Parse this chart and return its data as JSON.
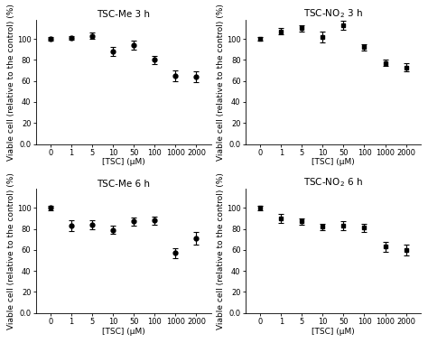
{
  "x_labels": [
    "0",
    "1",
    "5",
    "10",
    "50",
    "100",
    "1000",
    "2000"
  ],
  "x_positions": [
    0,
    1,
    2,
    3,
    4,
    5,
    6,
    7
  ],
  "panels": [
    {
      "title": "TSC-Me 3 h",
      "y_values": [
        100,
        101,
        103,
        88,
        94,
        80,
        65,
        64
      ],
      "y_errors": [
        2,
        2,
        3,
        4,
        4,
        4,
        5,
        5
      ],
      "marker": "o"
    },
    {
      "title": "TSC-NO$_2$ 3 h",
      "y_values": [
        100,
        107,
        110,
        102,
        113,
        92,
        77,
        73
      ],
      "y_errors": [
        2,
        3,
        3,
        5,
        4,
        3,
        3,
        4
      ],
      "marker": "s"
    },
    {
      "title": "TSC-Me 6 h",
      "y_values": [
        100,
        83,
        84,
        79,
        87,
        88,
        57,
        71
      ],
      "y_errors": [
        2,
        5,
        4,
        4,
        4,
        4,
        5,
        6
      ],
      "marker": "o"
    },
    {
      "title": "TSC-NO$_2$ 6 h",
      "y_values": [
        100,
        90,
        87,
        82,
        83,
        81,
        63,
        60
      ],
      "y_errors": [
        2,
        4,
        3,
        3,
        4,
        4,
        5,
        5
      ],
      "marker": "s"
    }
  ],
  "ylabel": "Viable cell (relative to the control) (%)",
  "xlabel": "[TSC] (μM)",
  "ylim_min": 0.0,
  "ylim_max": 118,
  "yticks": [
    0.0,
    20,
    40,
    60,
    80,
    100
  ],
  "ytick_labels": [
    "0.0",
    "20",
    "40",
    "60",
    "80",
    "100"
  ],
  "line_color": "black",
  "marker_size": 3.5,
  "capsize": 2,
  "background_color": "white",
  "title_fontsize": 7.5,
  "tick_fontsize": 6,
  "label_fontsize": 6.5
}
